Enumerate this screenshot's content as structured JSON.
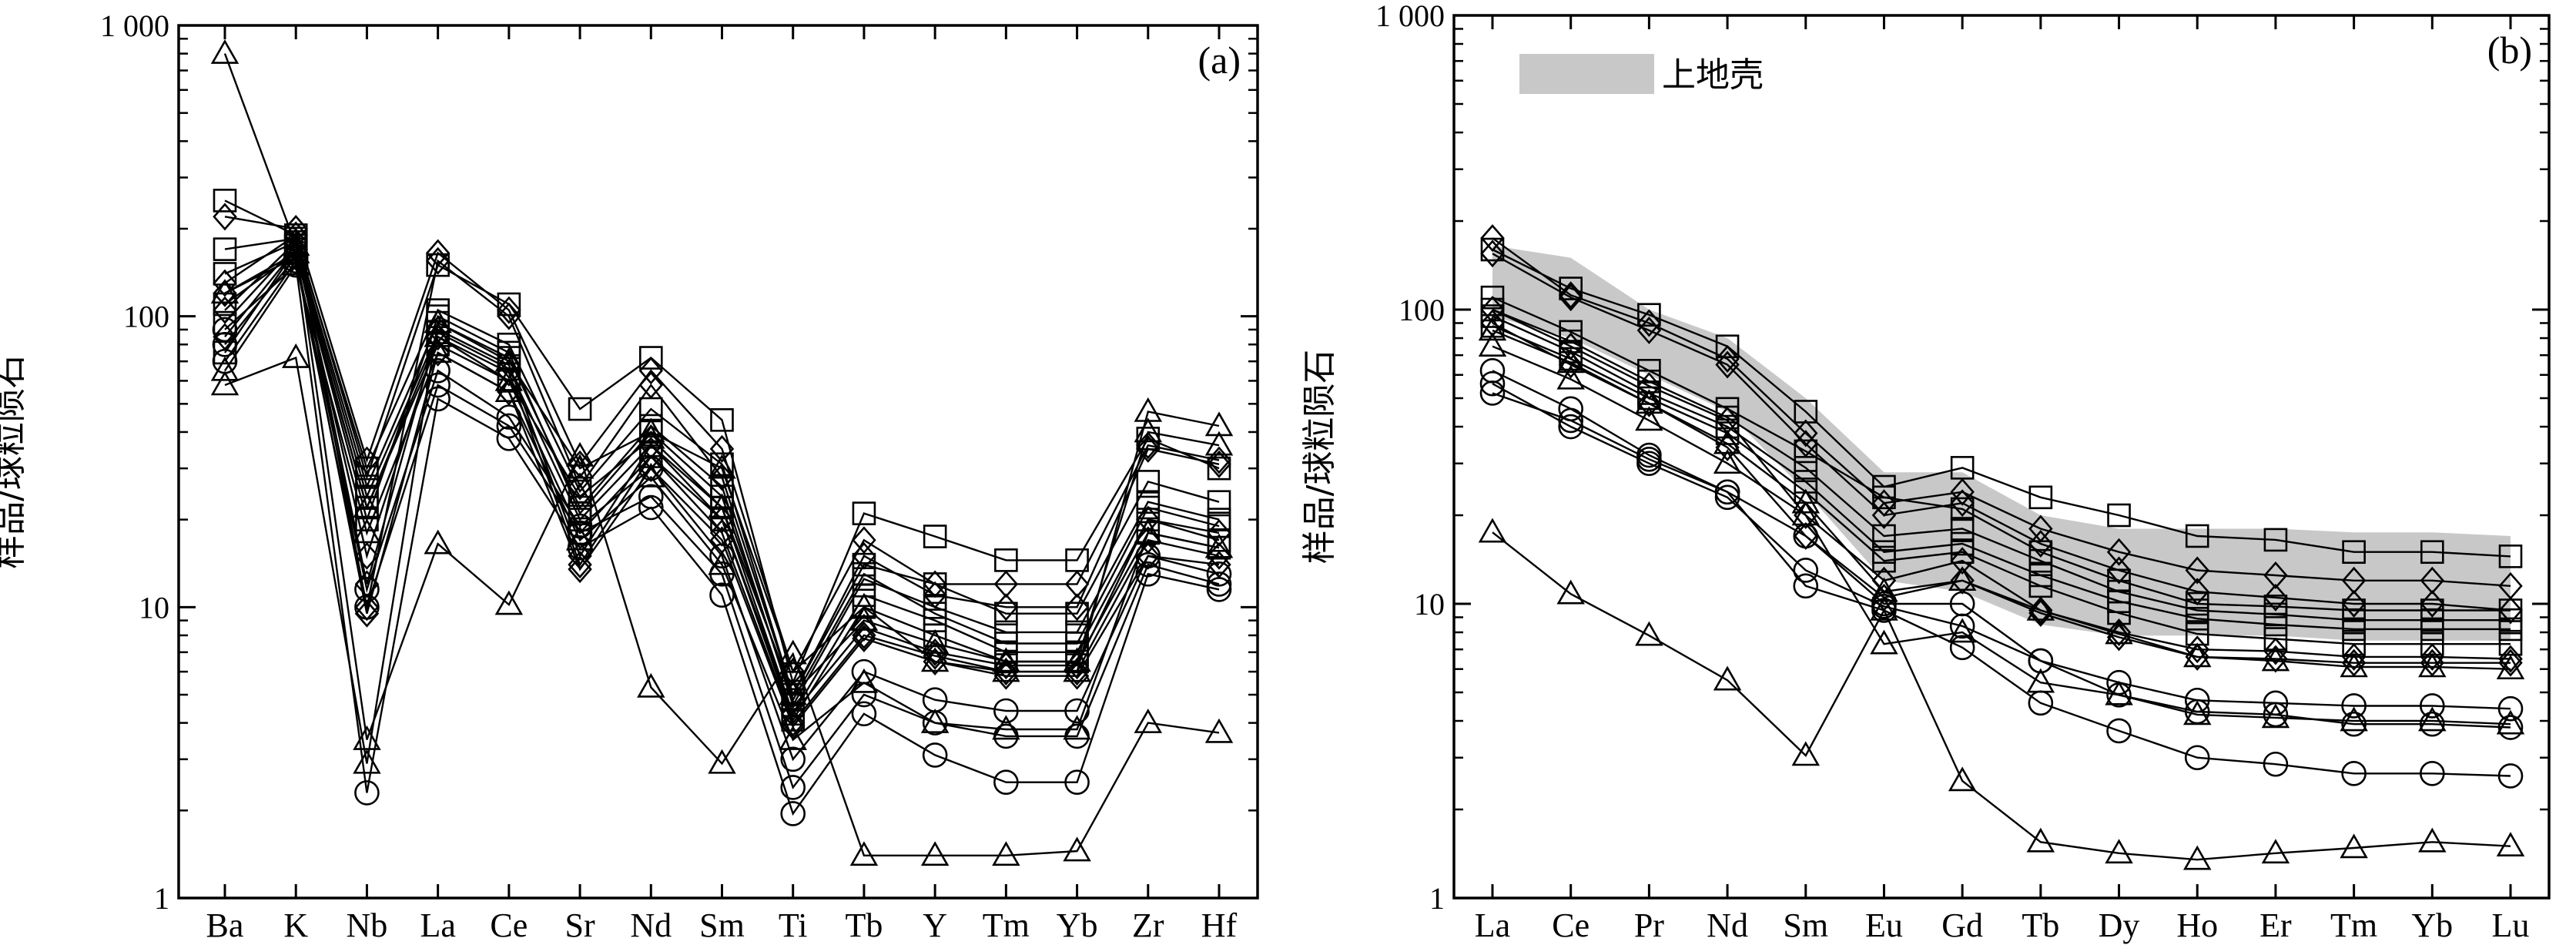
{
  "chart_data": [
    {
      "type": "line",
      "panel_label": "(a)",
      "ylabel": "样品/球粒陨石",
      "yscale": "log",
      "ylim": [
        1,
        1000
      ],
      "yticks": [
        "1",
        "10",
        "100",
        "1 000"
      ],
      "categories": [
        "Ba",
        "K",
        "Nb",
        "La",
        "Ce",
        "Sr",
        "Nd",
        "Sm",
        "Ti",
        "Tb",
        "Y",
        "Tm",
        "Yb",
        "Zr",
        "Hf"
      ],
      "series": [
        {
          "marker": "triangle",
          "values": [
            800,
            175,
            3.5,
            16.5,
            10.2,
            33,
            5.3,
            2.9,
            6.9,
            1.4,
            1.4,
            1.4,
            1.45,
            4.0,
            3.7
          ]
        },
        {
          "marker": "triangle",
          "values": [
            58,
            72,
            2.9,
            95,
            70,
            30,
            40,
            30,
            6,
            10,
            6.5,
            6,
            6,
            47,
            42
          ]
        },
        {
          "marker": "triangle",
          "values": [
            120,
            165,
            22,
            85,
            60,
            24,
            38,
            22,
            5,
            9,
            7.5,
            6.5,
            6.5,
            40,
            36
          ]
        },
        {
          "marker": "triangle",
          "values": [
            65,
            150,
            18,
            75,
            55,
            17,
            28,
            14,
            3.5,
            5.5,
            4,
            3.8,
            3.8,
            18,
            16
          ]
        },
        {
          "marker": "square",
          "values": [
            250,
            190,
            28,
            150,
            110,
            48,
            72,
            44,
            5.5,
            21,
            17.5,
            14.5,
            14.5,
            38,
            30
          ]
        },
        {
          "marker": "square",
          "values": [
            170,
            185,
            30,
            105,
            80,
            25,
            48,
            31,
            5,
            14,
            12,
            9.5,
            9.5,
            27,
            23
          ]
        },
        {
          "marker": "square",
          "values": [
            140,
            180,
            26,
            95,
            72,
            22,
            42,
            26,
            4.6,
            12.5,
            10,
            8.2,
            8.2,
            23,
            20
          ]
        },
        {
          "marker": "square",
          "values": [
            95,
            175,
            24,
            88,
            66,
            20,
            36,
            22,
            4.3,
            11,
            9,
            7,
            7,
            20,
            17
          ]
        },
        {
          "marker": "square",
          "values": [
            75,
            170,
            22,
            80,
            60,
            18,
            33,
            20,
            4.1,
            10,
            8,
            6.5,
            6.5,
            18,
            16
          ]
        },
        {
          "marker": "square",
          "values": [
            110,
            165,
            20,
            100,
            75,
            21,
            40,
            24,
            4.8,
            13,
            9.5,
            7.5,
            7.5,
            22,
            19
          ]
        },
        {
          "marker": "diamond",
          "values": [
            220,
            200,
            32,
            165,
            105,
            31,
            65,
            35,
            6,
            17,
            12,
            12,
            12,
            36,
            32
          ]
        },
        {
          "marker": "diamond",
          "values": [
            130,
            190,
            10,
            155,
            100,
            26,
            58,
            28,
            5,
            15,
            11,
            10,
            10,
            35,
            31
          ]
        },
        {
          "marker": "diamond",
          "values": [
            105,
            180,
            12,
            90,
            68,
            15,
            36,
            20,
            4.3,
            8.5,
            7,
            6.3,
            6.3,
            20,
            18
          ]
        },
        {
          "marker": "diamond",
          "values": [
            85,
            170,
            15,
            85,
            64,
            14,
            33,
            18,
            4,
            8,
            6.8,
            6,
            6,
            17,
            15
          ]
        },
        {
          "marker": "diamond",
          "values": [
            120,
            160,
            9.5,
            75,
            55,
            13.5,
            30,
            17,
            3.9,
            7.8,
            6.5,
            5.8,
            5.8,
            15,
            14
          ]
        },
        {
          "marker": "circle",
          "values": [
            80,
            160,
            11.5,
            65,
            45,
            19,
            30,
            15,
            3,
            6,
            4.8,
            4.4,
            4.4,
            15,
            13
          ]
        },
        {
          "marker": "circle",
          "values": [
            70,
            155,
            10,
            58,
            42,
            18,
            24,
            13,
            2.4,
            5,
            4,
            3.6,
            3.6,
            14,
            12
          ]
        },
        {
          "marker": "circle",
          "values": [
            90,
            150,
            2.3,
            52,
            38,
            16,
            22,
            11,
            1.95,
            4.3,
            3.1,
            2.5,
            2.5,
            13,
            11.5
          ]
        }
      ]
    },
    {
      "type": "line",
      "panel_label": "(b)",
      "ylabel": "样品/球粒陨石",
      "yscale": "log",
      "ylim": [
        1,
        1000
      ],
      "yticks": [
        "1",
        "10",
        "100",
        "1 000"
      ],
      "categories": [
        "La",
        "Ce",
        "Pr",
        "Nd",
        "Sm",
        "Eu",
        "Gd",
        "Tb",
        "Dy",
        "Ho",
        "Er",
        "Tm",
        "Yb",
        "Lu"
      ],
      "legend": {
        "label": "上地壳",
        "color": "#c8c8c8",
        "position": "top-left"
      },
      "upper_crust_band": {
        "upper": [
          165,
          150,
          100,
          80,
          50,
          28,
          28,
          20,
          18,
          18,
          18,
          17.5,
          17.5,
          17
        ],
        "lower": [
          95,
          80,
          60,
          45,
          24,
          12,
          11,
          8.5,
          7.8,
          7.8,
          7.8,
          7.5,
          7.5,
          7.5
        ]
      },
      "series": [
        {
          "marker": "triangle",
          "values": [
            17.5,
            10.8,
            7.8,
            5.5,
            3.05,
            9.5,
            2.5,
            1.55,
            1.42,
            1.35,
            1.42,
            1.48,
            1.55,
            1.5
          ]
        },
        {
          "marker": "triangle",
          "values": [
            75,
            58,
            42,
            30,
            20,
            7.3,
            8,
            5.4,
            4.9,
            4.2,
            4.1,
            4.0,
            4.0,
            3.9
          ]
        },
        {
          "marker": "triangle",
          "values": [
            85,
            66,
            48,
            35,
            22,
            11,
            12,
            9.5,
            7.9,
            6.6,
            6.4,
            6.1,
            6.1,
            6.0
          ]
        },
        {
          "marker": "square",
          "values": [
            160,
            118,
            96,
            75,
            45,
            25,
            29,
            23,
            20,
            17,
            16.5,
            15,
            15,
            14.5
          ]
        },
        {
          "marker": "square",
          "values": [
            110,
            84,
            62,
            46,
            33,
            23,
            21,
            15,
            12,
            10,
            9.8,
            9.5,
            9.5,
            9.5
          ]
        },
        {
          "marker": "square",
          "values": [
            100,
            78,
            57,
            43,
            29,
            17,
            18,
            14,
            11,
            9.5,
            9.2,
            8.8,
            8.8,
            8.8
          ]
        },
        {
          "marker": "square",
          "values": [
            95,
            72,
            52,
            40,
            26,
            15,
            16,
            12.5,
            10.2,
            8.9,
            8.5,
            8.2,
            8.2,
            8.2
          ]
        },
        {
          "marker": "square",
          "values": [
            88,
            68,
            50,
            38,
            24,
            14,
            15,
            11.5,
            9.3,
            7.9,
            7.6,
            7.3,
            7.3,
            7.3
          ]
        },
        {
          "marker": "diamond",
          "values": [
            175,
            112,
            90,
            68,
            38,
            22,
            24,
            18,
            15,
            13,
            12.5,
            12,
            12,
            11.5
          ]
        },
        {
          "marker": "diamond",
          "values": [
            155,
            110,
            85,
            65,
            35,
            20,
            22,
            16,
            13,
            11,
            10.5,
            10,
            10,
            9.5
          ]
        },
        {
          "marker": "diamond",
          "values": [
            100,
            75,
            55,
            42,
            20,
            12,
            14,
            9.5,
            8,
            7,
            6.9,
            6.6,
            6.6,
            6.5
          ]
        },
        {
          "marker": "diamond",
          "values": [
            90,
            65,
            48,
            34,
            17,
            10.5,
            12,
            9.3,
            7.7,
            6.6,
            6.5,
            6.3,
            6.3,
            6.3
          ]
        },
        {
          "marker": "circle",
          "values": [
            62,
            46,
            32,
            24,
            17,
            10,
            10,
            6.4,
            5.4,
            4.7,
            4.6,
            4.5,
            4.5,
            4.4
          ]
        },
        {
          "marker": "circle",
          "values": [
            56,
            40,
            30,
            23,
            13,
            9.8,
            8.4,
            6.4,
            4.9,
            4.3,
            4.2,
            3.9,
            3.9,
            3.8
          ]
        },
        {
          "marker": "circle",
          "values": [
            52,
            42,
            31,
            24,
            11.5,
            9.5,
            7.1,
            4.6,
            3.7,
            3.0,
            2.85,
            2.65,
            2.65,
            2.6
          ]
        }
      ]
    }
  ]
}
